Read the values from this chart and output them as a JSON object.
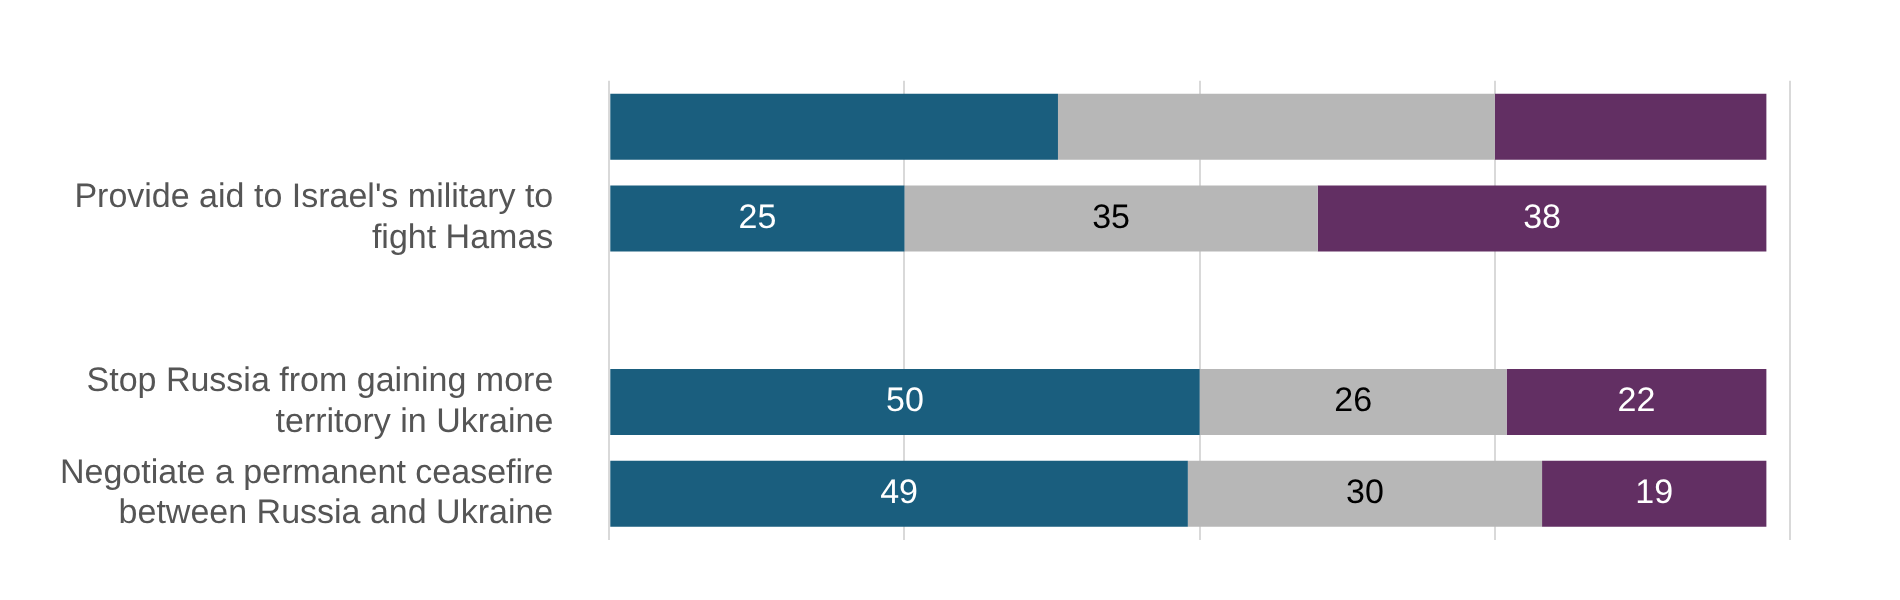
{
  "chart_data": {
    "type": "bar",
    "orientation": "horizontal",
    "stacked": true,
    "categories": [
      null,
      "Provide aid to Israel's military to fight Hamas",
      null,
      "Stop Russia from gaining more territory in Ukraine",
      "Negotiate a permanent ceasefire between Russia and Ukraine"
    ],
    "series": [
      {
        "color": "#1a5e7e",
        "values": [
          38,
          25,
          null,
          50,
          49
        ],
        "value_labels": [
          null,
          "25",
          null,
          "50",
          "49"
        ]
      },
      {
        "color": "#b7b7b7",
        "values": [
          37,
          35,
          null,
          26,
          30
        ],
        "value_labels": [
          null,
          "35",
          null,
          "26",
          "30"
        ]
      },
      {
        "color": "#622f63",
        "values": [
          23,
          38,
          null,
          22,
          19
        ],
        "value_labels": [
          null,
          "38",
          null,
          "22",
          "19"
        ]
      }
    ],
    "xlim": [
      0,
      100
    ],
    "xticks": [
      {
        "value": 0,
        "label": null
      },
      {
        "value": 25,
        "label": null
      },
      {
        "value": 50,
        "label": null
      },
      {
        "value": 75,
        "label": null
      },
      {
        "value": 100,
        "label": null
      }
    ],
    "grid": "x",
    "tick_labels": "y",
    "legend": false
  }
}
